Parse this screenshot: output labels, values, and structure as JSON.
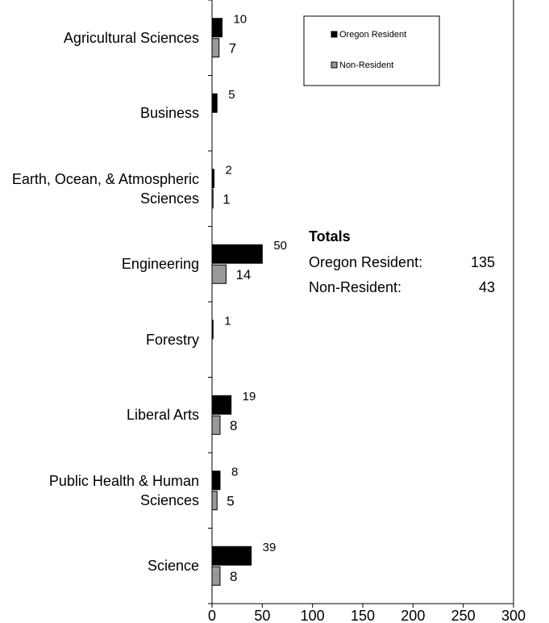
{
  "chart_data": {
    "type": "bar",
    "orientation": "horizontal",
    "categories": [
      "Agricultural Sciences",
      "Business",
      "Earth, Ocean, & Atmospheric Sciences",
      "Engineering",
      "Forestry",
      "Liberal Arts",
      "Public Health & Human Sciences",
      "Science"
    ],
    "series": [
      {
        "name": "Oregon Resident",
        "color": "#000000",
        "values": [
          10,
          5,
          2,
          50,
          1,
          19,
          8,
          39
        ]
      },
      {
        "name": "Non-Resident",
        "color": "#999999",
        "values": [
          7,
          null,
          1,
          14,
          null,
          8,
          5,
          8
        ]
      }
    ],
    "xlim": [
      0,
      300
    ],
    "xticks": [
      0,
      50,
      100,
      150,
      200,
      250,
      300
    ],
    "legend": "top-right",
    "totals": {
      "title": "Totals",
      "rows": [
        {
          "label": "Oregon Resident:",
          "value": "135"
        },
        {
          "label": "Non-Resident:",
          "value": "43"
        }
      ]
    }
  }
}
